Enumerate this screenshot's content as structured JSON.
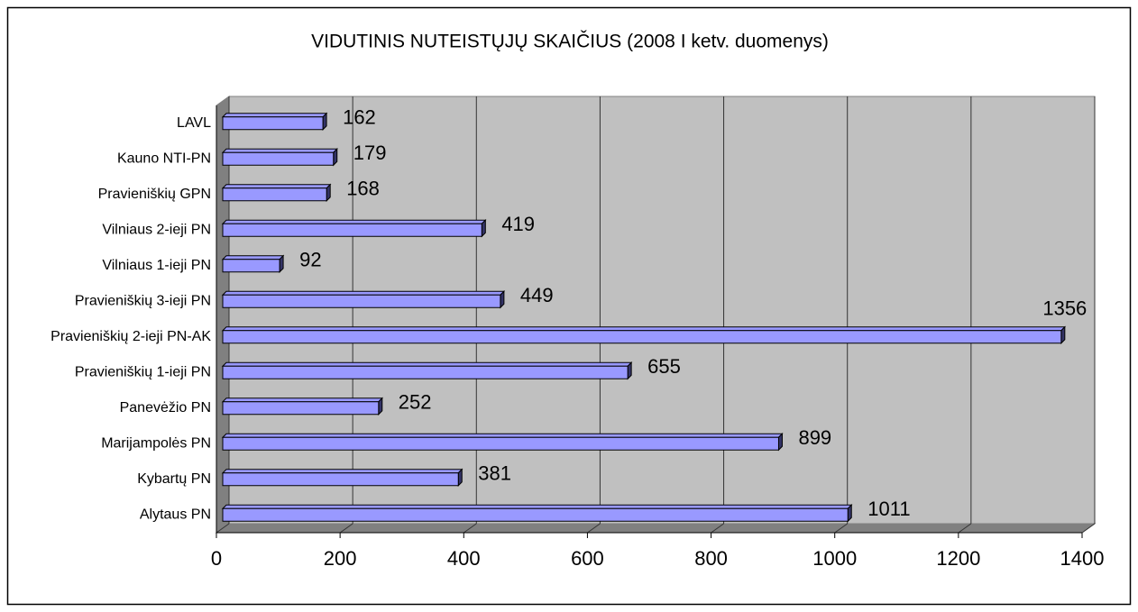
{
  "chart_data": {
    "type": "bar",
    "orientation": "horizontal",
    "title": "VIDUTINIS NUTEISTŲJŲ SKAIČIUS (2008 I ketv. duomenys)",
    "categories": [
      "LAVL",
      "Kauno NTI-PN",
      "Pravieniškių GPN",
      "Vilniaus 2-ieji PN",
      "Vilniaus 1-ieji PN",
      "Pravieniškių 3-ieji PN",
      "Pravieniškių 2-ieji PN-AK",
      "Pravieniškių 1-ieji PN",
      "Panevėžio PN",
      "Marijampolės PN",
      "Kybartų PN",
      "Alytaus PN"
    ],
    "values": [
      162,
      179,
      168,
      419,
      92,
      449,
      1356,
      655,
      252,
      899,
      381,
      1011
    ],
    "color": "#9999ff",
    "xlim": [
      0,
      1400
    ],
    "xticks": [
      0,
      200,
      400,
      600,
      800,
      1000,
      1200,
      1400
    ],
    "grid": true
  }
}
